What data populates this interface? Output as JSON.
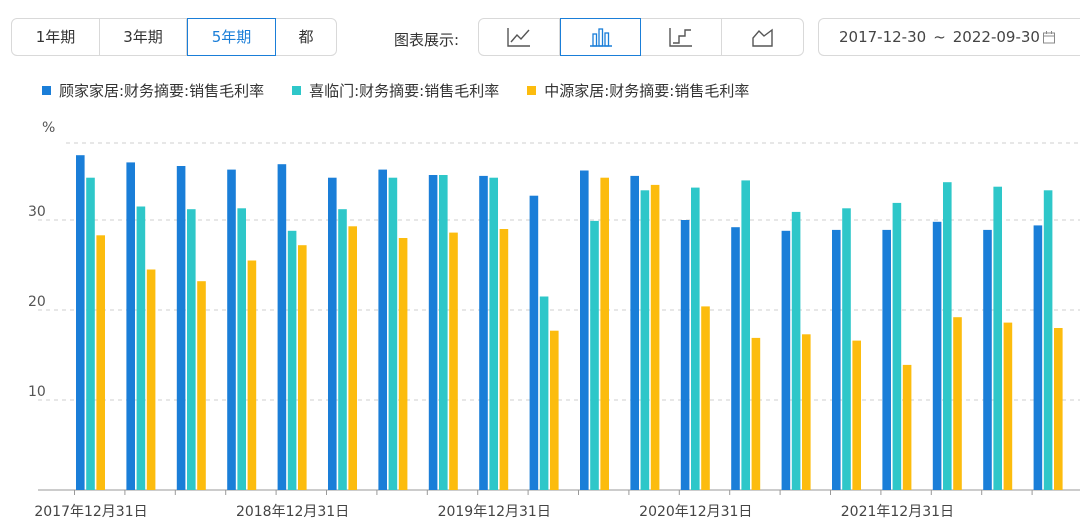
{
  "period_tabs": [
    {
      "label": "1年期",
      "active": false
    },
    {
      "label": "3年期",
      "active": false
    },
    {
      "label": "5年期",
      "active": true
    },
    {
      "label": "都",
      "active": false
    }
  ],
  "chart_type_label": "图表展示:",
  "chart_types": [
    {
      "icon": "line-chart-icon",
      "active": false
    },
    {
      "icon": "bar-chart-icon",
      "active": true
    },
    {
      "icon": "step-chart-icon",
      "active": false
    },
    {
      "icon": "area-chart-icon",
      "active": false
    }
  ],
  "date_range": {
    "start": "2017-12-30",
    "separator": "~",
    "end": "2022-09-30",
    "icon": "calendar-icon"
  },
  "colors": {
    "accent": "#1a7ed8"
  },
  "chart_data": {
    "type": "bar",
    "ylabel": "%",
    "ylim": [
      0,
      40
    ],
    "yticks": [
      10,
      20,
      30
    ],
    "grid": true,
    "legend_position": "top-left",
    "categories": [
      "2017Q4",
      "2018Q1",
      "2018Q2",
      "2018Q3",
      "2018Q4",
      "2019Q1",
      "2019Q2",
      "2019Q3",
      "2019Q4",
      "2020Q1",
      "2020Q2",
      "2020Q3",
      "2020Q4",
      "2021Q1",
      "2021Q2",
      "2021Q3",
      "2021Q4",
      "2022Q1",
      "2022Q2",
      "2022Q3"
    ],
    "x_tick_labels": [
      {
        "index": 0,
        "label": "2017年12月31日"
      },
      {
        "index": 4,
        "label": "2018年12月31日"
      },
      {
        "index": 8,
        "label": "2019年12月31日"
      },
      {
        "index": 12,
        "label": "2020年12月31日"
      },
      {
        "index": 16,
        "label": "2021年12月31日"
      }
    ],
    "series": [
      {
        "name": "顾家家居:财务摘要:销售毛利率",
        "color": "#1a7ed8",
        "values": [
          37.2,
          36.4,
          36.0,
          35.6,
          36.2,
          34.7,
          35.6,
          35.0,
          34.9,
          32.7,
          35.5,
          34.9,
          30.0,
          29.2,
          28.8,
          28.9,
          28.9,
          29.8,
          28.9,
          29.4
        ]
      },
      {
        "name": "喜临门:财务摘要:销售毛利率",
        "color": "#2ec7c9",
        "values": [
          34.7,
          31.5,
          31.2,
          31.3,
          28.8,
          31.2,
          34.7,
          35.0,
          34.7,
          21.5,
          29.9,
          33.3,
          33.6,
          34.4,
          30.9,
          31.3,
          31.9,
          34.2,
          33.7,
          33.3
        ]
      },
      {
        "name": "中源家居:财务摘要:销售毛利率",
        "color": "#fcbc0e",
        "values": [
          28.3,
          24.5,
          23.2,
          25.5,
          27.2,
          29.3,
          28.0,
          28.6,
          29.0,
          17.7,
          34.7,
          33.9,
          20.4,
          16.9,
          17.3,
          16.6,
          13.9,
          19.2,
          18.6,
          18.0
        ]
      }
    ]
  }
}
